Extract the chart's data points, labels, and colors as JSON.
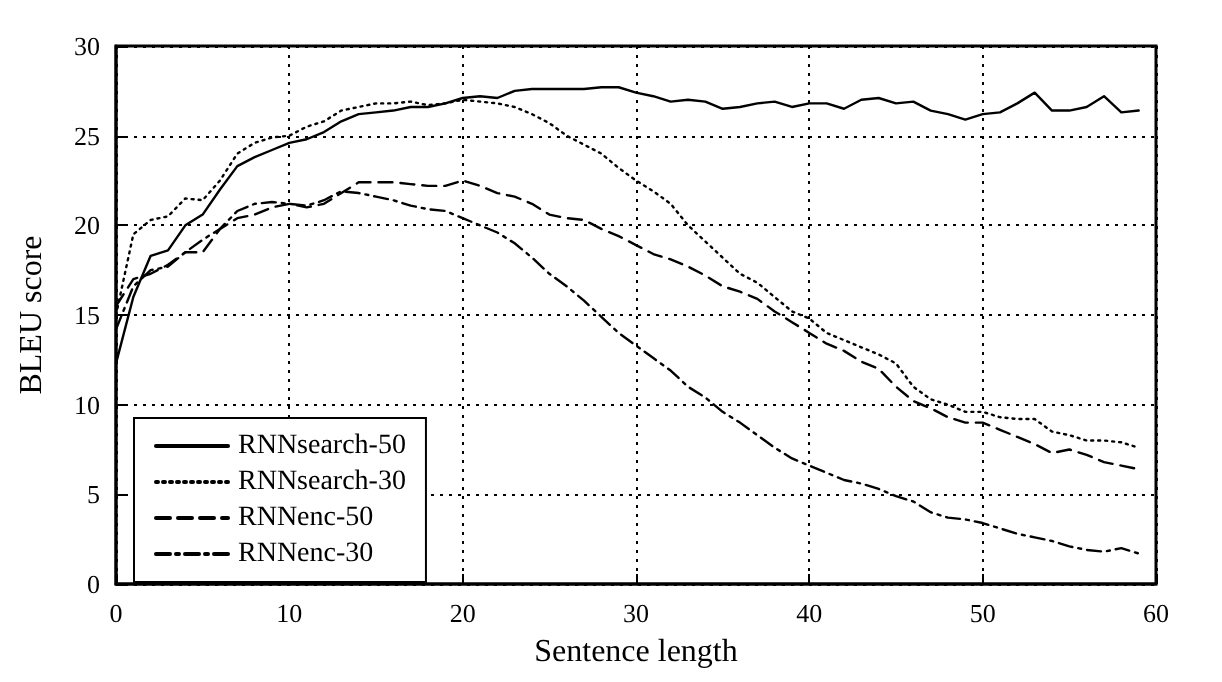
{
  "chart_data": {
    "type": "line",
    "xlabel": "Sentence length",
    "ylabel": "BLEU score",
    "x": [
      0,
      1,
      2,
      3,
      4,
      5,
      6,
      7,
      8,
      9,
      10,
      11,
      12,
      13,
      14,
      15,
      16,
      17,
      18,
      19,
      20,
      21,
      22,
      23,
      24,
      25,
      26,
      27,
      28,
      29,
      30,
      31,
      32,
      33,
      34,
      35,
      36,
      37,
      38,
      39,
      40,
      41,
      42,
      43,
      44,
      45,
      46,
      47,
      48,
      49,
      50,
      51,
      52,
      53,
      54,
      55,
      56,
      57,
      58,
      59
    ],
    "xlim": [
      0,
      60
    ],
    "xticks": [
      0,
      10,
      20,
      30,
      40,
      50,
      60
    ],
    "ylim": [
      0,
      30
    ],
    "yticks": [
      0,
      5,
      10,
      15,
      20,
      25,
      30
    ],
    "grid": true,
    "legend": "bottom left",
    "marker": "none",
    "series": [
      {
        "name": "RNNsearch-50",
        "color": "#000000",
        "line_style": "solid",
        "values": [
          12.3,
          16,
          18.3,
          18.6,
          20,
          20.6,
          22,
          23.3,
          23.8,
          24.2,
          24.6,
          24.8,
          25.2,
          25.8,
          26.2,
          26.3,
          26.4,
          26.6,
          26.6,
          26.8,
          27.1,
          27.2,
          27.1,
          27.5,
          27.6,
          27.6,
          27.6,
          27.6,
          27.7,
          27.7,
          27.4,
          27.2,
          26.9,
          27.0,
          26.9,
          26.5,
          26.6,
          26.8,
          26.9,
          26.6,
          26.8,
          26.8,
          26.5,
          27.0,
          27.1,
          26.8,
          26.9,
          26.4,
          26.2,
          25.9,
          26.2,
          26.3,
          26.8,
          27.4,
          26.4,
          26.4,
          26.6,
          27.2,
          26.3,
          26.4
        ]
      },
      {
        "name": "RNNsearch-30",
        "color": "#000000",
        "line_style": "dotted",
        "values": [
          15,
          19.5,
          20.3,
          20.5,
          21.5,
          21.4,
          22.5,
          24,
          24.6,
          24.9,
          25,
          25.5,
          25.8,
          26.4,
          26.6,
          26.8,
          26.8,
          26.9,
          26.7,
          26.8,
          27,
          26.9,
          26.8,
          26.6,
          26.2,
          25.7,
          25,
          24.5,
          24,
          23.2,
          22.5,
          21.9,
          21.2,
          20,
          19.1,
          18.2,
          17.3,
          16.8,
          16,
          15.2,
          14.8,
          14.0,
          13.6,
          13.2,
          12.8,
          12.3,
          11.0,
          10.3,
          10,
          9.6,
          9.6,
          9.3,
          9.2,
          9.2,
          8.5,
          8.3,
          8.0,
          8.0,
          7.9,
          7.6
        ]
      },
      {
        "name": "RNNenc-50",
        "color": "#000000",
        "line_style": "dashed",
        "values": [
          15.5,
          17,
          17.3,
          17.8,
          18.5,
          18.5,
          19.8,
          20.4,
          20.6,
          21,
          21.2,
          21,
          21.2,
          21.8,
          22.4,
          22.4,
          22.4,
          22.3,
          22.2,
          22.2,
          22.5,
          22.2,
          21.8,
          21.6,
          21.2,
          20.6,
          20.4,
          20.3,
          19.8,
          19.4,
          18.9,
          18.4,
          18.1,
          17.7,
          17.2,
          16.6,
          16.3,
          15.9,
          15.2,
          14.6,
          14,
          13.4,
          13.0,
          12.4,
          12.0,
          11.0,
          10.2,
          9.8,
          9.3,
          9.0,
          9.0,
          8.6,
          8.2,
          7.8,
          7.3,
          7.5,
          7.2,
          6.8,
          6.6,
          6.4
        ]
      },
      {
        "name": "RNNenc-30",
        "color": "#000000",
        "line_style": "dashdot",
        "values": [
          14.2,
          16.6,
          17.5,
          17.7,
          18.5,
          19.2,
          19.8,
          20.8,
          21.2,
          21.3,
          21.2,
          21.1,
          21.4,
          21.9,
          21.8,
          21.6,
          21.4,
          21.1,
          20.9,
          20.8,
          20.4,
          20.0,
          19.6,
          19.0,
          18.2,
          17.3,
          16.6,
          15.8,
          14.9,
          14.0,
          13.3,
          12.6,
          11.9,
          11.0,
          10.4,
          9.6,
          9.0,
          8.3,
          7.6,
          7.0,
          6.6,
          6.2,
          5.8,
          5.6,
          5.3,
          4.9,
          4.6,
          4.0,
          3.7,
          3.6,
          3.4,
          3.1,
          2.8,
          2.6,
          2.4,
          2.1,
          1.9,
          1.8,
          2.0,
          1.7
        ]
      }
    ]
  }
}
